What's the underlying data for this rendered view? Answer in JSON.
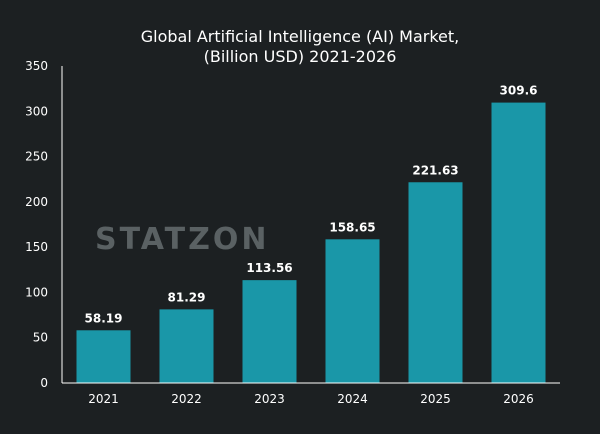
{
  "chart_data": {
    "type": "bar",
    "title_line1": "Global Artificial Intelligence (AI) Market,",
    "title_line2": "(Billion USD) 2021-2026",
    "categories": [
      "2021",
      "2022",
      "2023",
      "2024",
      "2025",
      "2026"
    ],
    "values": [
      58.19,
      81.29,
      113.56,
      158.65,
      221.63,
      309.6
    ],
    "value_labels": [
      "58.19",
      "81.29",
      "113.56",
      "158.65",
      "221.63",
      "309.6"
    ],
    "ylim": [
      0,
      350
    ],
    "yticks": [
      0,
      50,
      100,
      150,
      200,
      250,
      300,
      350
    ],
    "xlabel": "",
    "ylabel": "",
    "grid": false,
    "bar_color": "#1a97a8",
    "background": "#1c2022"
  },
  "watermark": "STATZON"
}
